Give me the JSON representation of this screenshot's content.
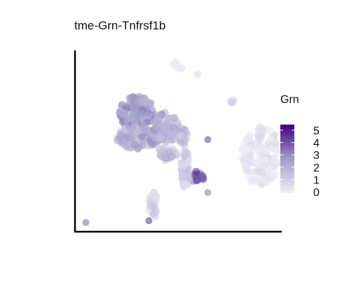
{
  "chart_data": {
    "type": "scatter",
    "title": "tme-Grn-Tnfrsf1b",
    "xlabel": "",
    "ylabel": "",
    "color_variable": "Grn",
    "color_scale": {
      "min": 0,
      "max": 5.5,
      "low_color": "#f0eff6",
      "high_color": "#3f007d",
      "ticks": [
        "0",
        "1",
        "2",
        "3",
        "4",
        "5"
      ]
    },
    "grid": false,
    "legend_position": "right",
    "clusters": [
      {
        "cx": 0.3,
        "cy": 0.66,
        "rx": 0.085,
        "ry": 0.1,
        "n": 150,
        "expr": 2.6
      },
      {
        "cx": 0.31,
        "cy": 0.52,
        "rx": 0.11,
        "ry": 0.065,
        "n": 110,
        "expr": 2.3
      },
      {
        "cx": 0.44,
        "cy": 0.58,
        "rx": 0.07,
        "ry": 0.085,
        "n": 90,
        "expr": 2.0
      },
      {
        "cx": 0.45,
        "cy": 0.43,
        "rx": 0.055,
        "ry": 0.04,
        "n": 35,
        "expr": 1.5
      },
      {
        "cx": 0.52,
        "cy": 0.53,
        "rx": 0.03,
        "ry": 0.05,
        "n": 30,
        "expr": 1.6
      },
      {
        "cx": 0.6,
        "cy": 0.3,
        "rx": 0.035,
        "ry": 0.03,
        "n": 14,
        "expr": 4.2
      },
      {
        "cx": 0.54,
        "cy": 0.34,
        "rx": 0.02,
        "ry": 0.12,
        "n": 50,
        "expr": 1.2
      },
      {
        "cx": 0.38,
        "cy": 0.14,
        "rx": 0.022,
        "ry": 0.075,
        "n": 32,
        "expr": 0.8
      },
      {
        "cx": 0.91,
        "cy": 0.42,
        "rx": 0.095,
        "ry": 0.165,
        "n": 150,
        "expr": 0.3
      },
      {
        "cx": 0.51,
        "cy": 0.93,
        "rx": 0.045,
        "ry": 0.022,
        "n": 8,
        "expr": 0.2
      },
      {
        "cx": 0.77,
        "cy": 0.73,
        "rx": 0.012,
        "ry": 0.03,
        "n": 5,
        "expr": 0.5
      }
    ],
    "singletons": [
      {
        "x": 0.05,
        "y": 0.04,
        "expr": 2.5
      },
      {
        "x": 0.36,
        "y": 0.05,
        "expr": 3.2
      },
      {
        "x": 0.65,
        "y": 0.51,
        "expr": 3.0
      },
      {
        "x": 0.65,
        "y": 0.21,
        "expr": 2.2
      },
      {
        "x": 0.6,
        "y": 0.88,
        "expr": 0.3
      }
    ]
  }
}
